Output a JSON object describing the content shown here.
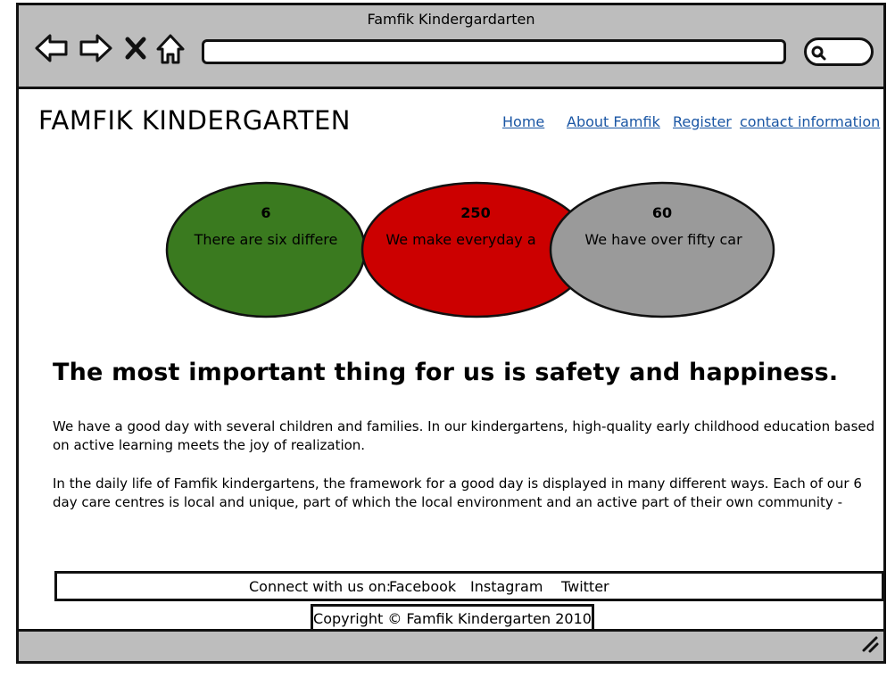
{
  "window": {
    "title": "Famfik Kindergardarten"
  },
  "browser": {
    "back_icon": "arrow-left-icon",
    "forward_icon": "arrow-right-icon",
    "stop_icon": "close-icon",
    "home_icon": "home-icon",
    "address_value": "",
    "search_icon": "search-icon"
  },
  "header": {
    "site_title": "FAMFIK KINDERGARTEN",
    "menu": [
      {
        "label": "Home"
      },
      {
        "label": "About Famfik"
      },
      {
        "label": "Register"
      },
      {
        "label": "contact information"
      }
    ]
  },
  "stats": [
    {
      "number": "6",
      "text": "There are six differe",
      "color": "#3a7a1f"
    },
    {
      "number": "250",
      "text": "We make everyday a",
      "color": "#cc0000"
    },
    {
      "number": "60",
      "text": "We have over fifty car",
      "color": "#9a9a9a"
    }
  ],
  "main": {
    "headline": "The most important thing for us is safety and happiness.",
    "paragraph1": "We have a good day with several children and families. In our kindergartens, high-quality early childhood education based on active learning meets the  joy of realization.",
    "paragraph2": "In the daily life of Famfik kindergartens, the framework for a good day is displayed in many different ways. Each of our 6 day care centres is local and unique, part of which the local environment and an active part of their own community -"
  },
  "footer": {
    "connect_label": "Connect with us on:",
    "social": [
      "Facebook",
      "Instagram",
      "Twitter"
    ],
    "copyright": "Copyright © Famfik Kindergarten 2010"
  },
  "colors": {
    "link": "#1a56a4",
    "chrome": "#bdbdbd"
  }
}
